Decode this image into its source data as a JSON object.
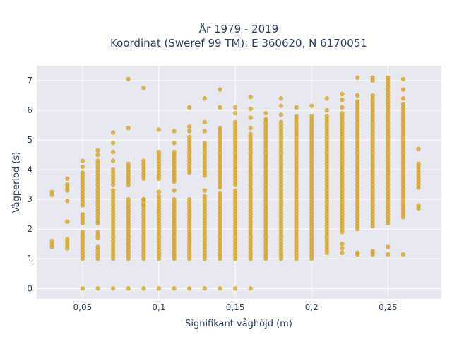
{
  "chart_data": {
    "type": "scatter",
    "title": "År 1979 - 2019",
    "subtitle": "Koordinat (Sweref 99 TM): E 360620, N 6170051",
    "xlabel": "Signifikant våghöjd (m)",
    "ylabel": "Vågperiod (s)",
    "xlim": [
      0.02,
      0.285
    ],
    "ylim": [
      -0.35,
      7.5
    ],
    "x_ticks": [
      0.05,
      0.1,
      0.15,
      0.2,
      0.25
    ],
    "x_tick_labels": [
      "0,05",
      "0,1",
      "0,15",
      "0,2",
      "0,25"
    ],
    "y_ticks": [
      0,
      1,
      2,
      3,
      4,
      5,
      6,
      7
    ],
    "y_tick_labels": [
      "0",
      "1",
      "2",
      "3",
      "4",
      "5",
      "6",
      "7"
    ],
    "grid": true,
    "legend": "none",
    "colors": {
      "marker": "#d4a017",
      "plot_bg": "#e8e8f0",
      "grid": "#ffffff",
      "text": "#2a3f5f"
    },
    "columns": [
      {
        "x": 0.03,
        "ranges": [
          [
            1.4,
            1.6
          ]
        ],
        "points": [
          3.15,
          3.25
        ]
      },
      {
        "x": 0.04,
        "ranges": [
          [
            1.35,
            1.65
          ]
        ],
        "points": [
          2.25,
          2.95,
          3.3,
          3.4,
          3.5,
          3.7
        ]
      },
      {
        "x": 0.05,
        "ranges": [
          [
            1.0,
            1.9
          ],
          [
            2.2,
            2.5
          ],
          [
            2.8,
            3.9
          ]
        ],
        "points": [
          0,
          4.1,
          4.3
        ]
      },
      {
        "x": 0.06,
        "ranges": [
          [
            1.0,
            1.4
          ],
          [
            1.7,
            1.9
          ],
          [
            2.2,
            3.5
          ],
          [
            3.6,
            4.3
          ]
        ],
        "points": [
          0,
          4.5,
          4.65
        ]
      },
      {
        "x": 0.07,
        "ranges": [
          [
            1.0,
            3.3
          ],
          [
            3.5,
            4.0
          ]
        ],
        "points": [
          0,
          4.3,
          4.6,
          4.9,
          5.25
        ]
      },
      {
        "x": 0.08,
        "ranges": [
          [
            1.0,
            3.0
          ],
          [
            3.5,
            4.2
          ]
        ],
        "points": [
          0,
          5.4,
          7.05
        ]
      },
      {
        "x": 0.09,
        "ranges": [
          [
            1.0,
            3.0
          ],
          [
            3.7,
            4.3
          ]
        ],
        "points": [
          0,
          2.8,
          3.0,
          6.75
        ]
      },
      {
        "x": 0.1,
        "ranges": [
          [
            1.0,
            3.1
          ],
          [
            3.7,
            4.6
          ]
        ],
        "points": [
          0,
          3.25,
          5.35
        ]
      },
      {
        "x": 0.11,
        "ranges": [
          [
            1.0,
            3.05
          ],
          [
            3.6,
            4.6
          ]
        ],
        "points": [
          0,
          3.3,
          4.9,
          5.3
        ]
      },
      {
        "x": 0.12,
        "ranges": [
          [
            1.0,
            3.0
          ],
          [
            3.9,
            5.1
          ]
        ],
        "points": [
          0,
          5.3,
          5.45,
          6.1
        ]
      },
      {
        "x": 0.13,
        "ranges": [
          [
            1.0,
            3.1
          ],
          [
            3.8,
            4.9
          ]
        ],
        "points": [
          0,
          3.3,
          5.3,
          5.6,
          6.4
        ]
      },
      {
        "x": 0.14,
        "ranges": [
          [
            1.0,
            3.2
          ],
          [
            3.4,
            5.4
          ]
        ],
        "points": [
          0,
          6.1,
          6.7
        ]
      },
      {
        "x": 0.15,
        "ranges": [
          [
            1.0,
            3.3
          ],
          [
            3.5,
            5.6
          ]
        ],
        "points": [
          0,
          5.9,
          6.1
        ]
      },
      {
        "x": 0.16,
        "ranges": [
          [
            1.0,
            5.2
          ]
        ],
        "points": [
          0,
          5.4,
          5.75,
          6.05,
          6.45
        ]
      },
      {
        "x": 0.17,
        "ranges": [
          [
            1.0,
            5.75
          ]
        ],
        "points": [
          5.9
        ]
      },
      {
        "x": 0.18,
        "ranges": [
          [
            1.0,
            5.6
          ]
        ],
        "points": [
          5.85,
          6.15,
          6.4
        ]
      },
      {
        "x": 0.19,
        "ranges": [
          [
            1.0,
            5.8
          ]
        ],
        "points": [
          6.1
        ]
      },
      {
        "x": 0.2,
        "ranges": [
          [
            1.0,
            5.8
          ]
        ],
        "points": [
          6.15
        ]
      },
      {
        "x": 0.21,
        "ranges": [
          [
            1.2,
            5.8
          ]
        ],
        "points": [
          6.0,
          6.4
        ]
      },
      {
        "x": 0.22,
        "ranges": [
          [
            1.9,
            5.9
          ]
        ],
        "points": [
          1.2,
          1.35,
          1.5,
          6.1,
          6.35,
          6.55
        ]
      },
      {
        "x": 0.23,
        "ranges": [
          [
            2.0,
            6.3
          ]
        ],
        "points": [
          1.15,
          1.2,
          6.5,
          7.1
        ]
      },
      {
        "x": 0.24,
        "ranges": [
          [
            2.1,
            6.5
          ]
        ],
        "points": [
          1.15,
          1.25,
          7.0,
          7.1
        ]
      },
      {
        "x": 0.25,
        "ranges": [
          [
            2.2,
            7.1
          ]
        ],
        "points": [
          1.15,
          1.4
        ]
      },
      {
        "x": 0.26,
        "ranges": [
          [
            2.4,
            6.2
          ]
        ],
        "points": [
          1.15,
          6.4,
          6.7,
          7.05
        ]
      },
      {
        "x": 0.27,
        "ranges": [
          [
            3.4,
            4.2
          ]
        ],
        "points": [
          2.7,
          2.8,
          4.7
        ]
      }
    ]
  }
}
